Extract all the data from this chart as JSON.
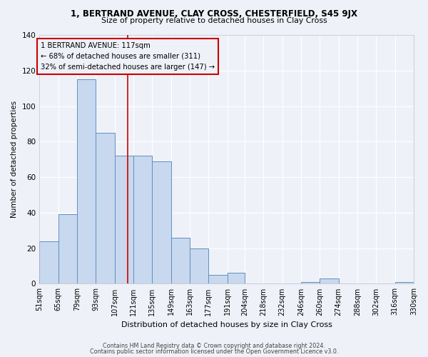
{
  "title": "1, BERTRAND AVENUE, CLAY CROSS, CHESTERFIELD, S45 9JX",
  "subtitle": "Size of property relative to detached houses in Clay Cross",
  "xlabel": "Distribution of detached houses by size in Clay Cross",
  "ylabel": "Number of detached properties",
  "bar_edges": [
    51,
    65,
    79,
    93,
    107,
    121,
    135,
    149,
    163,
    177,
    191,
    204,
    218,
    232,
    246,
    260,
    274,
    288,
    302,
    316,
    330
  ],
  "bar_heights": [
    24,
    39,
    115,
    85,
    72,
    72,
    69,
    26,
    20,
    5,
    6,
    0,
    0,
    0,
    1,
    3,
    0,
    0,
    0,
    1
  ],
  "bar_color": "#c8d8ee",
  "bar_edge_color": "#6090c0",
  "property_line_x": 117,
  "property_line_color": "#cc0000",
  "annotation_title": "1 BERTRAND AVENUE: 117sqm",
  "annotation_line1": "← 68% of detached houses are smaller (311)",
  "annotation_line2": "32% of semi-detached houses are larger (147) →",
  "annotation_box_edgecolor": "#cc0000",
  "ylim": [
    0,
    140
  ],
  "yticks": [
    0,
    20,
    40,
    60,
    80,
    100,
    120,
    140
  ],
  "bg_color": "#eef2f8",
  "grid_color": "#ffffff",
  "footer1": "Contains HM Land Registry data © Crown copyright and database right 2024.",
  "footer2": "Contains public sector information licensed under the Open Government Licence v3.0."
}
